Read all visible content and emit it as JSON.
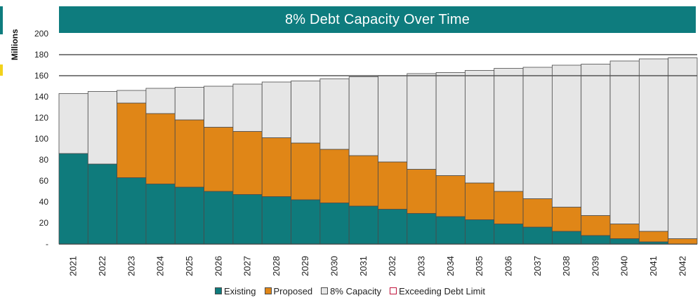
{
  "colors": {
    "title_bar": "#0e7c7e",
    "existing": "#0f7b7c",
    "proposed": "#e08617",
    "capacity": "#e6e6e6",
    "exceeding": "#c0143c",
    "accent_yellow": "#f2d21b",
    "bar_edge": "#4a4a4a",
    "gridline": "#555555"
  },
  "chart_data": {
    "type": "bar",
    "stacked": true,
    "title": "8% Debt Capacity Over Time",
    "ylabel": "Millions",
    "xlabel": "",
    "ylim": [
      0,
      200
    ],
    "yticks": [
      0,
      20,
      40,
      60,
      80,
      100,
      120,
      140,
      160,
      180,
      200
    ],
    "yticks_labels": [
      "-",
      "20",
      "40",
      "60",
      "80",
      "100",
      "120",
      "140",
      "160",
      "180",
      "200"
    ],
    "gridlines": [
      160,
      180
    ],
    "legend_position": "bottom",
    "categories": [
      "2021",
      "2022",
      "2023",
      "2024",
      "2025",
      "2026",
      "2027",
      "2028",
      "2029",
      "2030",
      "2031",
      "2032",
      "2033",
      "2034",
      "2035",
      "2036",
      "2037",
      "2038",
      "2039",
      "2040",
      "2041",
      "2042"
    ],
    "series": [
      {
        "name": "Existing",
        "values": [
          86,
          76,
          63,
          57,
          54,
          50,
          47,
          45,
          42,
          39,
          36,
          33,
          29,
          26,
          23,
          19,
          16,
          12,
          8,
          5,
          2,
          0
        ]
      },
      {
        "name": "Proposed",
        "values": [
          0,
          0,
          71,
          67,
          64,
          61,
          60,
          56,
          54,
          51,
          48,
          45,
          42,
          39,
          35,
          31,
          27,
          23,
          19,
          14,
          10,
          5
        ]
      },
      {
        "name": "8% Capacity",
        "values": [
          57,
          69,
          12,
          24,
          31,
          39,
          45,
          53,
          59,
          67,
          75,
          82,
          91,
          98,
          107,
          117,
          125,
          135,
          144,
          155,
          164,
          172
        ]
      },
      {
        "name": "Exceeding Debt Limit",
        "values": [
          0,
          0,
          0,
          0,
          0,
          0,
          0,
          0,
          0,
          0,
          0,
          0,
          0,
          0,
          0,
          0,
          0,
          0,
          0,
          0,
          0,
          0
        ]
      }
    ]
  }
}
